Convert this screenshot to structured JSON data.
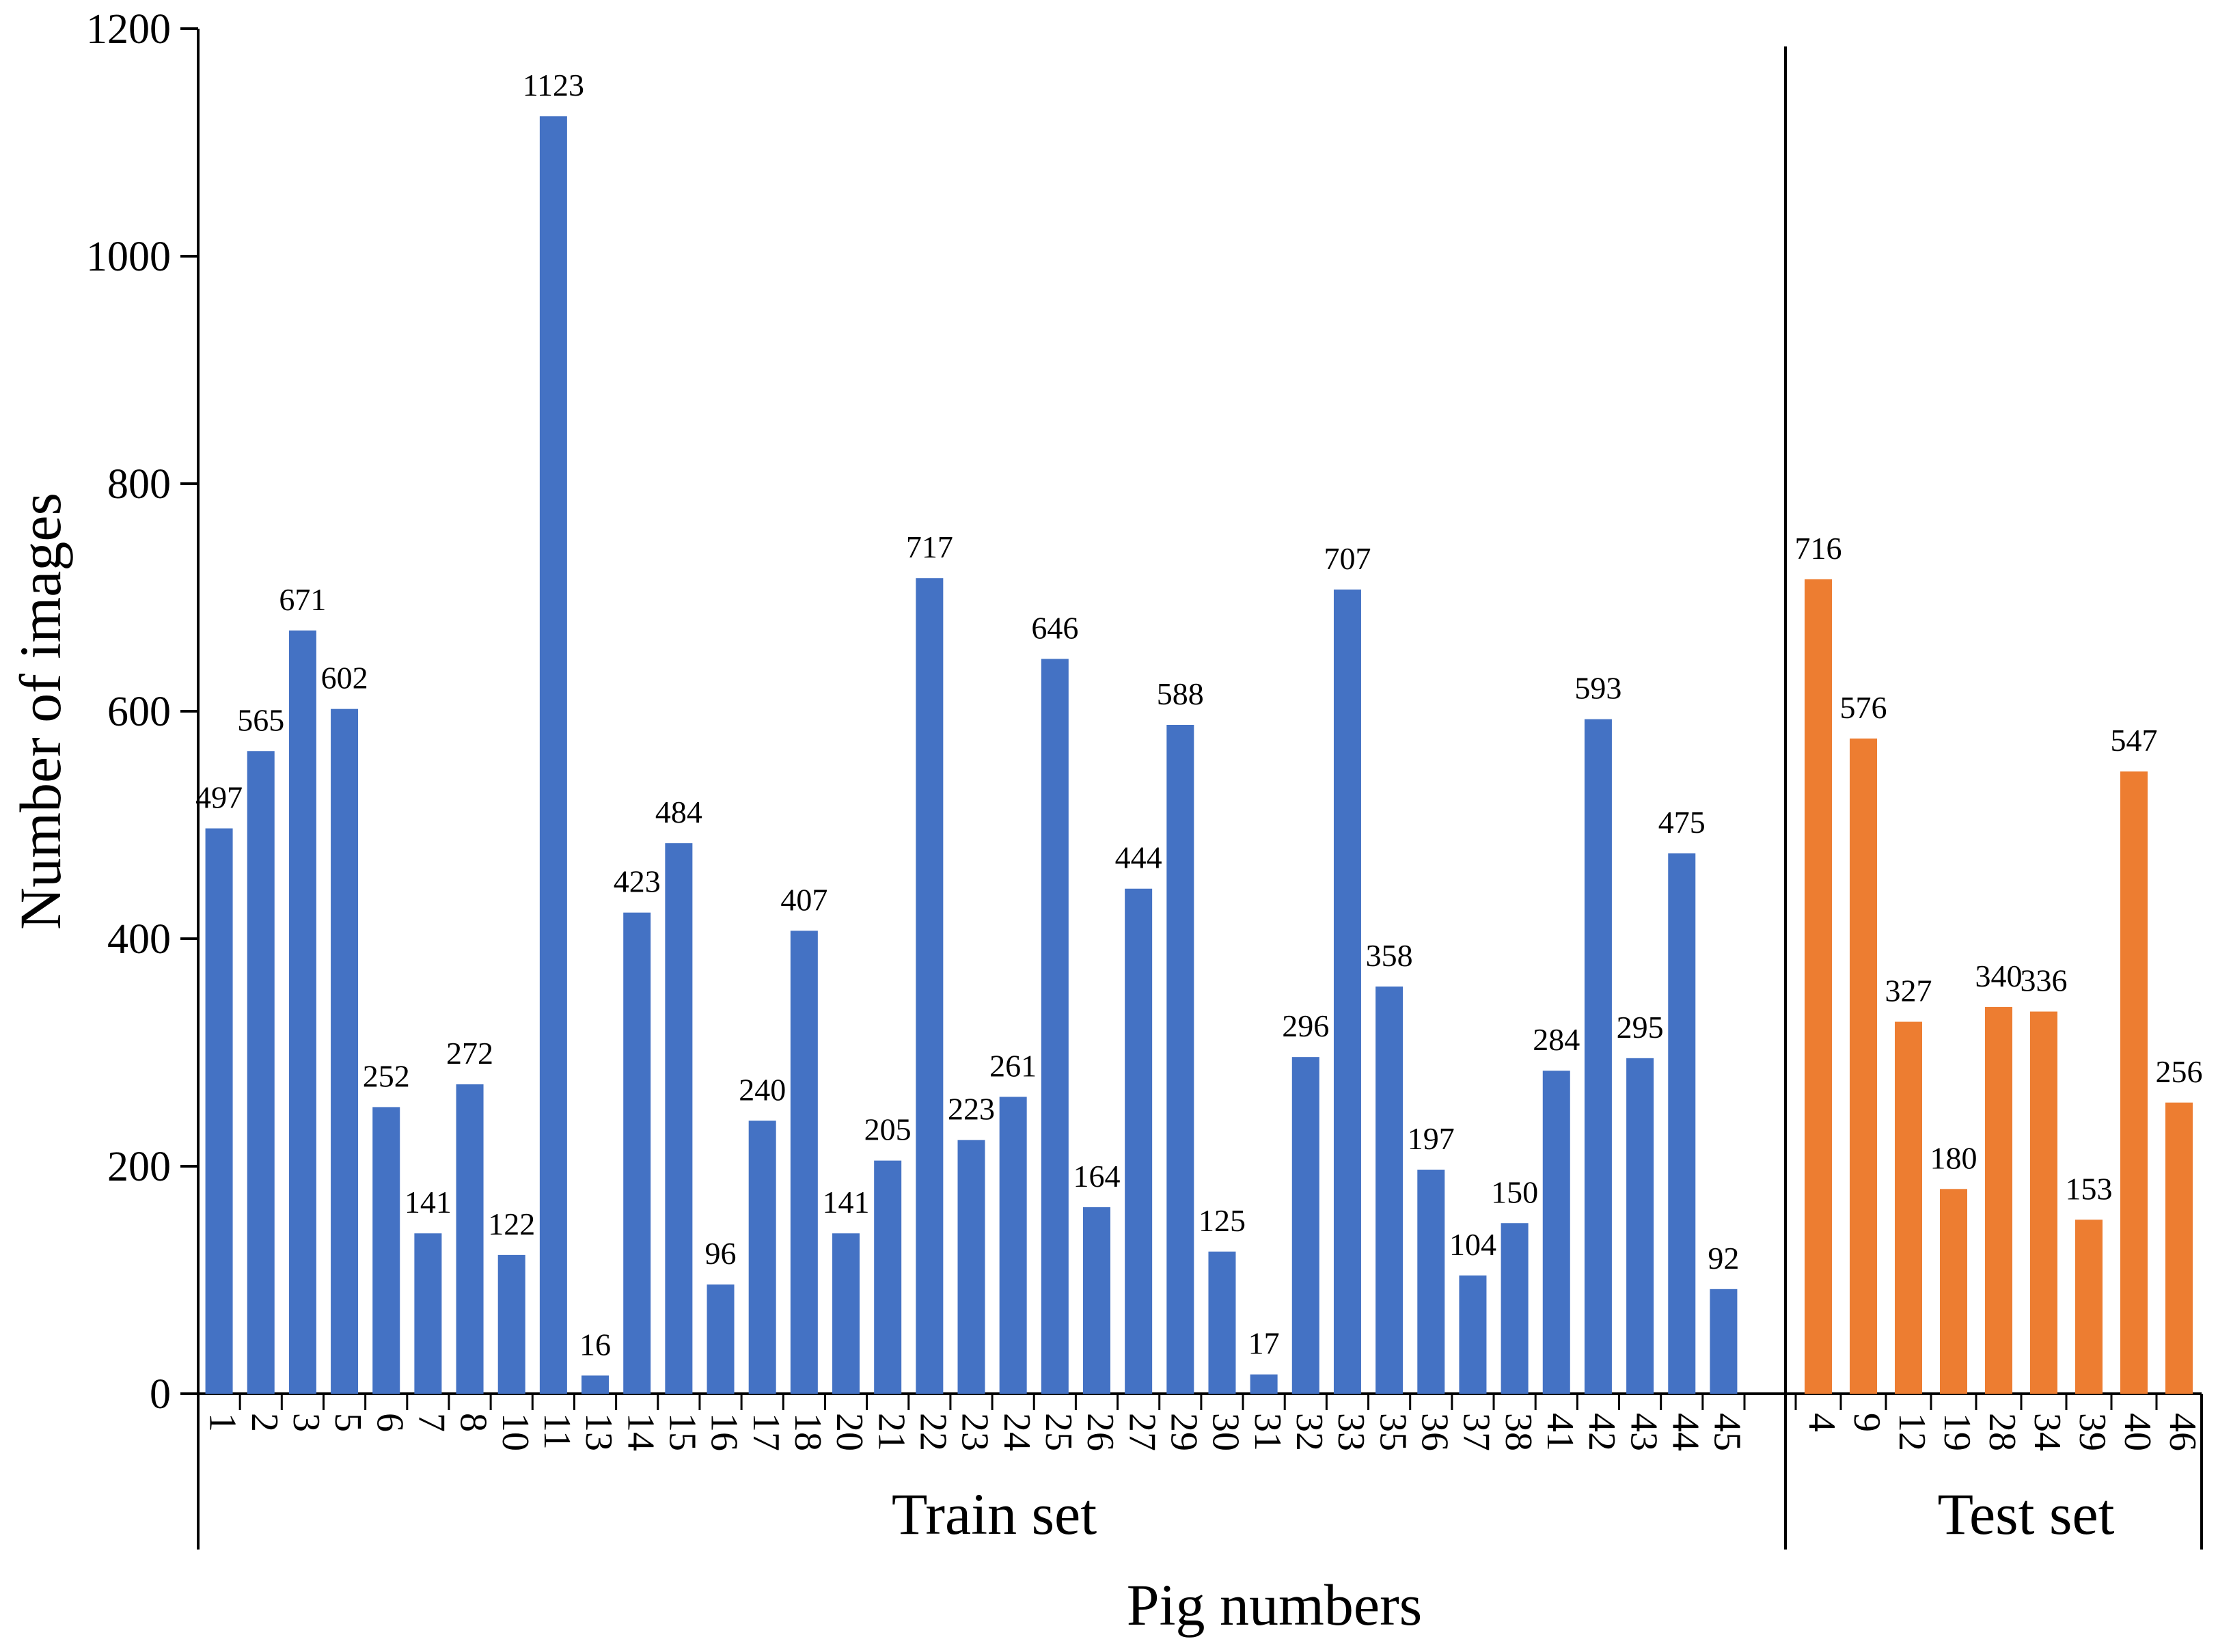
{
  "chart_data": {
    "type": "bar",
    "title": "",
    "xlabel": "Pig numbers",
    "ylabel": "Number of images",
    "ylim": [
      0,
      1200
    ],
    "yticks": [
      0,
      200,
      400,
      600,
      800,
      1000,
      1200
    ],
    "grid": false,
    "legend": "none",
    "groups": [
      {
        "name": "Train set",
        "color": "#4472C4",
        "categories": [
          "1",
          "2",
          "3",
          "5",
          "6",
          "7",
          "8",
          "10",
          "11",
          "13",
          "14",
          "15",
          "16",
          "17",
          "18",
          "20",
          "21",
          "22",
          "23",
          "24",
          "25",
          "26",
          "27",
          "29",
          "30",
          "31",
          "32",
          "33",
          "35",
          "36",
          "37",
          "38",
          "41",
          "42",
          "43",
          "44",
          "45"
        ],
        "values": [
          497,
          565,
          671,
          602,
          252,
          141,
          272,
          122,
          1123,
          16,
          423,
          484,
          96,
          240,
          407,
          141,
          205,
          717,
          223,
          261,
          646,
          164,
          444,
          588,
          125,
          17,
          296,
          707,
          358,
          197,
          104,
          150,
          284,
          593,
          295,
          475,
          92
        ]
      },
      {
        "name": "Test set",
        "color": "#ED7D31",
        "categories": [
          "4",
          "9",
          "12",
          "19",
          "28",
          "34",
          "39",
          "40",
          "46"
        ],
        "values": [
          716,
          576,
          327,
          180,
          340,
          336,
          153,
          547,
          256
        ]
      }
    ]
  }
}
